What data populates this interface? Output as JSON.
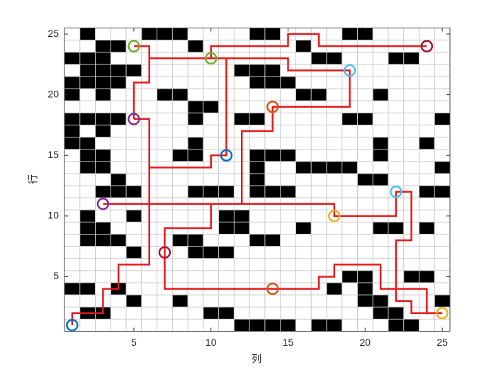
{
  "chart_data": {
    "type": "grid",
    "xlabel": "列",
    "ylabel": "行",
    "xlim": [
      0.5,
      25.5
    ],
    "ylim": [
      0.5,
      25.5
    ],
    "xticks": [
      5,
      10,
      15,
      20,
      25
    ],
    "yticks": [
      5,
      10,
      15,
      20,
      25
    ],
    "grid": true,
    "obstacle_color": "#000000",
    "path_color": "#e41a1c",
    "obstacles": [
      [
        2,
        25
      ],
      [
        6,
        25
      ],
      [
        7,
        25
      ],
      [
        8,
        25
      ],
      [
        13,
        25
      ],
      [
        14,
        25
      ],
      [
        19,
        25
      ],
      [
        20,
        25
      ],
      [
        3,
        24
      ],
      [
        4,
        24
      ],
      [
        9,
        24
      ],
      [
        16,
        24
      ],
      [
        1,
        23
      ],
      [
        2,
        23
      ],
      [
        3,
        23
      ],
      [
        17,
        23
      ],
      [
        18,
        23
      ],
      [
        22,
        23
      ],
      [
        23,
        23
      ],
      [
        2,
        22
      ],
      [
        3,
        22
      ],
      [
        4,
        22
      ],
      [
        5,
        22
      ],
      [
        12,
        22
      ],
      [
        13,
        22
      ],
      [
        14,
        22
      ],
      [
        1,
        21
      ],
      [
        2,
        21
      ],
      [
        3,
        21
      ],
      [
        4,
        21
      ],
      [
        13,
        21
      ],
      [
        14,
        21
      ],
      [
        15,
        21
      ],
      [
        1,
        20
      ],
      [
        3,
        20
      ],
      [
        7,
        20
      ],
      [
        8,
        20
      ],
      [
        16,
        20
      ],
      [
        17,
        20
      ],
      [
        21,
        20
      ],
      [
        9,
        19
      ],
      [
        10,
        19
      ],
      [
        1,
        18
      ],
      [
        2,
        18
      ],
      [
        3,
        18
      ],
      [
        4,
        18
      ],
      [
        9,
        18
      ],
      [
        12,
        18
      ],
      [
        13,
        18
      ],
      [
        19,
        18
      ],
      [
        20,
        18
      ],
      [
        25,
        18
      ],
      [
        1,
        17
      ],
      [
        3,
        17
      ],
      [
        1,
        16
      ],
      [
        2,
        16
      ],
      [
        9,
        16
      ],
      [
        21,
        16
      ],
      [
        24,
        16
      ],
      [
        2,
        15
      ],
      [
        3,
        15
      ],
      [
        8,
        15
      ],
      [
        9,
        15
      ],
      [
        13,
        15
      ],
      [
        14,
        15
      ],
      [
        15,
        15
      ],
      [
        21,
        15
      ],
      [
        2,
        14
      ],
      [
        3,
        14
      ],
      [
        13,
        14
      ],
      [
        16,
        14
      ],
      [
        17,
        14
      ],
      [
        18,
        14
      ],
      [
        19,
        14
      ],
      [
        25,
        14
      ],
      [
        4,
        13
      ],
      [
        13,
        13
      ],
      [
        20,
        13
      ],
      [
        21,
        13
      ],
      [
        3,
        12
      ],
      [
        4,
        12
      ],
      [
        5,
        12
      ],
      [
        9,
        12
      ],
      [
        10,
        12
      ],
      [
        11,
        12
      ],
      [
        13,
        12
      ],
      [
        14,
        12
      ],
      [
        15,
        12
      ],
      [
        24,
        12
      ],
      [
        25,
        12
      ],
      [
        2,
        10
      ],
      [
        5,
        10
      ],
      [
        11,
        10
      ],
      [
        12,
        10
      ],
      [
        2,
        9
      ],
      [
        3,
        9
      ],
      [
        11,
        9
      ],
      [
        12,
        9
      ],
      [
        16,
        9
      ],
      [
        21,
        9
      ],
      [
        22,
        9
      ],
      [
        24,
        9
      ],
      [
        2,
        8
      ],
      [
        3,
        8
      ],
      [
        4,
        8
      ],
      [
        8,
        8
      ],
      [
        9,
        8
      ],
      [
        13,
        8
      ],
      [
        14,
        8
      ],
      [
        5,
        7
      ],
      [
        9,
        7
      ],
      [
        10,
        7
      ],
      [
        11,
        7
      ],
      [
        19,
        5
      ],
      [
        20,
        5
      ],
      [
        23,
        5
      ],
      [
        24,
        5
      ],
      [
        1,
        4
      ],
      [
        2,
        4
      ],
      [
        4,
        4
      ],
      [
        18,
        4
      ],
      [
        20,
        4
      ],
      [
        5,
        3
      ],
      [
        8,
        3
      ],
      [
        20,
        3
      ],
      [
        21,
        3
      ],
      [
        25,
        3
      ],
      [
        2,
        2
      ],
      [
        3,
        2
      ],
      [
        10,
        2
      ],
      [
        11,
        2
      ],
      [
        21,
        2
      ],
      [
        22,
        2
      ],
      [
        12,
        1
      ],
      [
        13,
        1
      ],
      [
        14,
        1
      ],
      [
        15,
        1
      ],
      [
        17,
        1
      ],
      [
        18,
        1
      ],
      [
        22,
        1
      ],
      [
        23,
        1
      ]
    ],
    "paths": [
      {
        "x": [
          1,
          1,
          3,
          3,
          4,
          4,
          6,
          6,
          5
        ],
        "y": [
          1,
          2,
          2,
          4,
          4,
          6,
          6,
          18,
          18
        ]
      },
      {
        "x": [
          5,
          5,
          6,
          6,
          5
        ],
        "y": [
          18,
          21,
          21,
          24,
          24
        ]
      },
      {
        "x": [
          6,
          15,
          15,
          19,
          19,
          14,
          14,
          12,
          12
        ],
        "y": [
          23,
          23,
          22,
          22,
          19,
          19,
          17,
          17,
          11
        ]
      },
      {
        "x": [
          10,
          10,
          15,
          15,
          17,
          17,
          24
        ],
        "y": [
          23,
          24,
          24,
          25,
          25,
          24,
          24
        ]
      },
      {
        "x": [
          11,
          11,
          10,
          10,
          6
        ],
        "y": [
          23,
          15,
          15,
          14,
          14
        ]
      },
      {
        "x": [
          3,
          18,
          18,
          22,
          22,
          23,
          23,
          22,
          22,
          23,
          23,
          25
        ],
        "y": [
          11,
          11,
          10,
          10,
          12,
          12,
          8,
          8,
          3,
          3,
          2,
          2
        ]
      },
      {
        "x": [
          25,
          24,
          24,
          21,
          21,
          18,
          18,
          17,
          17,
          7,
          7
        ],
        "y": [
          2,
          2,
          4,
          4,
          6,
          6,
          5,
          5,
          4,
          4,
          7
        ]
      },
      {
        "x": [
          7,
          7,
          10,
          10
        ],
        "y": [
          7,
          9,
          9,
          11
        ]
      }
    ],
    "series": [
      {
        "color": "#0072bd",
        "x": [
          1,
          11
        ],
        "y": [
          1,
          15
        ]
      },
      {
        "color": "#a2142f",
        "x": [
          24,
          7
        ],
        "y": [
          24,
          7
        ]
      },
      {
        "color": "#77ac30",
        "x": [
          5,
          10
        ],
        "y": [
          24,
          23
        ]
      },
      {
        "color": "#4dbeee",
        "x": [
          19,
          22
        ],
        "y": [
          22,
          12
        ]
      },
      {
        "color": "#d95319",
        "x": [
          14,
          14
        ],
        "y": [
          19,
          4
        ]
      },
      {
        "color": "#7e2f8e",
        "x": [
          5,
          3
        ],
        "y": [
          18,
          11
        ]
      },
      {
        "color": "#edb120",
        "x": [
          18,
          25
        ],
        "y": [
          10,
          2
        ]
      }
    ]
  }
}
